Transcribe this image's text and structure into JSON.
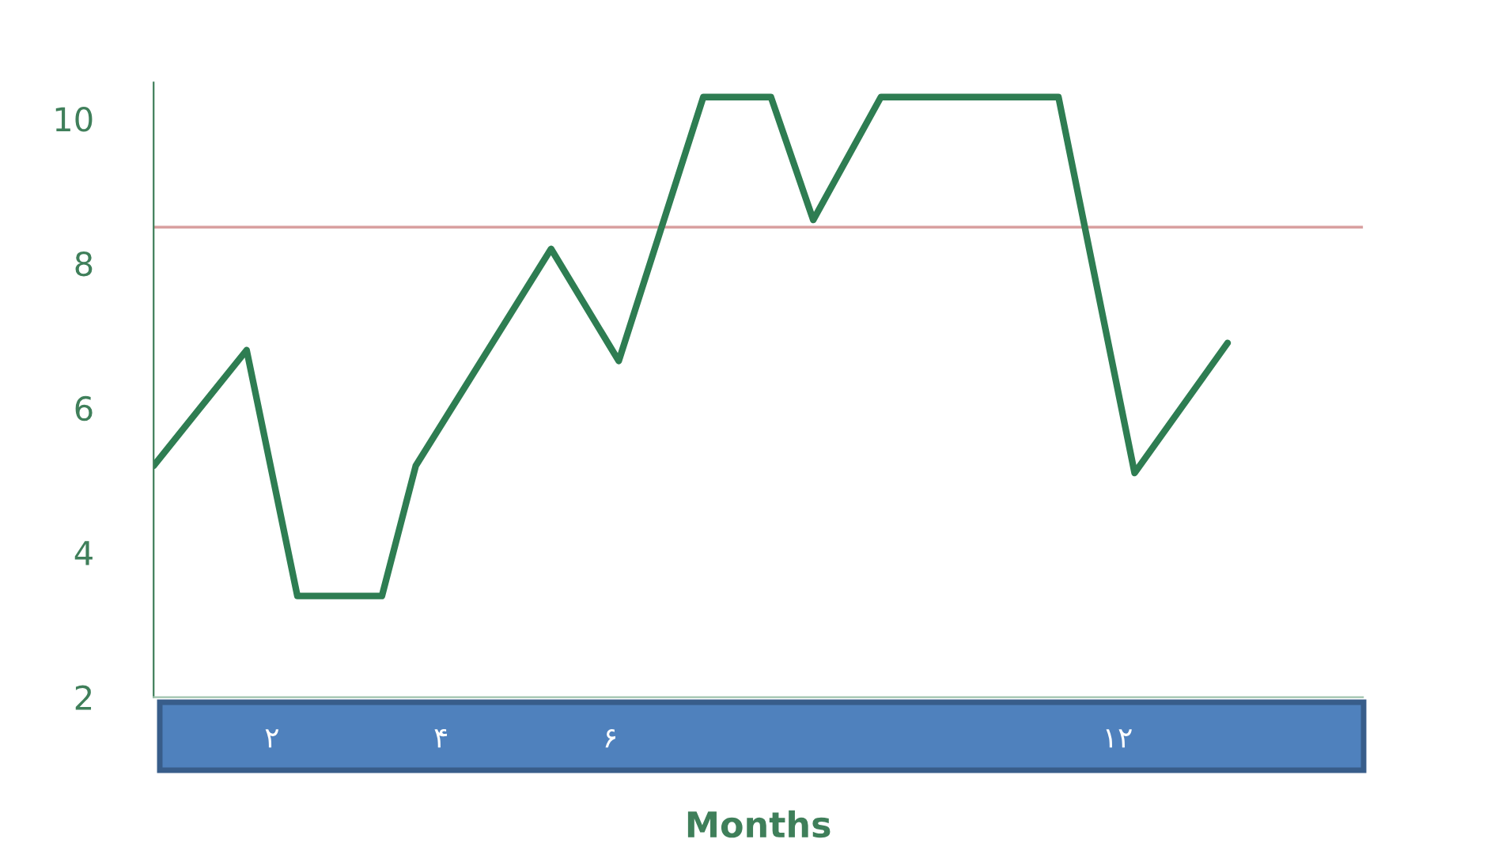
{
  "chart_data": {
    "type": "line",
    "xlabel": "Months",
    "x": [
      0.6,
      1.7,
      2.3,
      3.3,
      3.7,
      5.3,
      6.1,
      7.1,
      7.9,
      8.4,
      9.2,
      11.3,
      12.2,
      13.3
    ],
    "series": [
      {
        "color": "#2e7d52",
        "values": [
          5.2,
          6.8,
          3.4,
          3.4,
          5.2,
          8.2,
          6.65,
          10.3,
          10.3,
          8.6,
          10.3,
          10.3,
          5.1,
          6.9
        ]
      }
    ],
    "xlim": [
      0.6,
      14.9
    ],
    "ylim": [
      2,
      10.5
    ],
    "xticks": [
      {
        "value": 2,
        "label": "۲"
      },
      {
        "value": 4,
        "label": "۴"
      },
      {
        "value": 6,
        "label": "۶"
      },
      {
        "value": 12,
        "label": "۱۲"
      }
    ],
    "yticks": [
      2,
      4,
      6,
      8,
      10
    ],
    "ref_lines": [
      {
        "axis": "y",
        "value": 8.5,
        "label": null,
        "color": "#d9a0a0",
        "line_style": "solid"
      }
    ],
    "grid": false,
    "marker": "none",
    "line_style": "solid"
  }
}
